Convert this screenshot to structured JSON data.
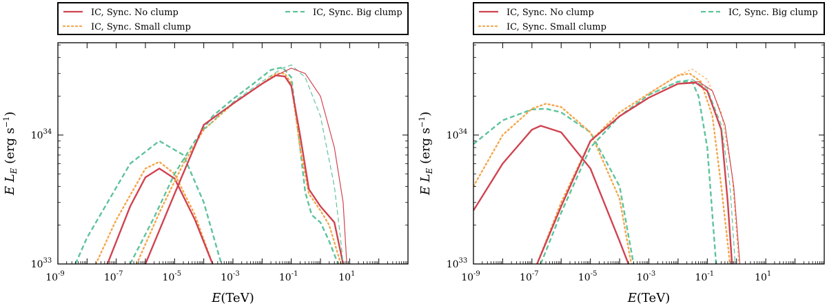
{
  "chart_data": [
    {
      "type": "line",
      "panel": "left",
      "xlabel": "E(TeV)",
      "ylabel": "E L_E (erg s^-1)",
      "xscale": "log",
      "yscale": "log",
      "xlim": [
        1e-09,
        1000
      ],
      "ylim": [
        1e+33,
        5.2e+34
      ],
      "x_tick_labels": [
        {
          "exp": "-9",
          "v": 1e-09
        },
        {
          "exp": "-7",
          "v": 1e-07
        },
        {
          "exp": "-5",
          "v": 1e-05
        },
        {
          "exp": "-3",
          "v": 0.001
        },
        {
          "exp": "-1",
          "v": 0.1
        },
        {
          "exp": "1",
          "v": 10
        }
      ],
      "y_tick_labels": [
        {
          "exp": "33",
          "v": 1e+33
        },
        {
          "exp": "34",
          "v": 1e+34
        }
      ],
      "legend": {
        "placement": "top",
        "entries": [
          {
            "label": "IC, Sync. No clump",
            "color": "#d0424f",
            "dash": "solid"
          },
          {
            "label": "IC, Sync. Small clump",
            "color": "#f5a64a",
            "dash": "dotted"
          },
          {
            "label": "IC, Sync. Big clump",
            "color": "#5cc39b",
            "dash": "dashed"
          }
        ]
      },
      "series": [
        {
          "color": "#5cc39b",
          "dash": "dashed",
          "width": 2.4,
          "points": [
            [
              4e-09,
              1e+33
            ],
            [
              1e-08,
              1.6e+33
            ],
            [
              3e-07,
              6e+33
            ],
            [
              3e-06,
              9e+33
            ],
            [
              2e-05,
              7e+33
            ],
            [
              0.0001,
              3e+33
            ],
            [
              0.0004,
              1e+33
            ]
          ]
        },
        {
          "color": "#f5a64a",
          "dash": "dotted",
          "width": 2.4,
          "points": [
            [
              2e-08,
              1e+33
            ],
            [
              1e-07,
              2.2e+33
            ],
            [
              1e-06,
              5.5e+33
            ],
            [
              3e-06,
              6.2e+33
            ],
            [
              1e-05,
              5e+33
            ],
            [
              5e-05,
              2.4e+33
            ],
            [
              0.0002,
              1e+33
            ]
          ]
        },
        {
          "color": "#d0424f",
          "dash": "solid",
          "width": 2.4,
          "points": [
            [
              5e-08,
              1e+33
            ],
            [
              3e-07,
              2.8e+33
            ],
            [
              1e-06,
              4.7e+33
            ],
            [
              3e-06,
              5.5e+33
            ],
            [
              1e-05,
              4.6e+33
            ],
            [
              5e-05,
              2.2e+33
            ],
            [
              0.0002,
              1e+33
            ]
          ]
        },
        {
          "color": "#5cc39b",
          "dash": "dashed",
          "width": 2.4,
          "points": [
            [
              3e-07,
              1e+33
            ],
            [
              2e-06,
              2.3e+33
            ],
            [
              1e-05,
              5e+33
            ],
            [
              5e-05,
              9e+33
            ],
            [
              0.0002,
              1.4e+34
            ],
            [
              0.001,
              1.9e+34
            ],
            [
              0.005,
              2.5e+34
            ],
            [
              0.02,
              3.2e+34
            ],
            [
              0.05,
              3.35e+34
            ],
            [
              0.1,
              2.8e+34
            ],
            [
              0.2,
              8e+33
            ],
            [
              0.3,
              3.6e+33
            ],
            [
              0.5,
              2.4e+33
            ],
            [
              1,
              2.1e+33
            ],
            [
              2,
              1.5e+33
            ],
            [
              4,
              1e+33
            ]
          ]
        },
        {
          "color": "#f5a64a",
          "dash": "dotted",
          "width": 2.4,
          "points": [
            [
              5e-07,
              1e+33
            ],
            [
              3e-06,
              2.5e+33
            ],
            [
              2e-05,
              6e+33
            ],
            [
              0.0001,
              1.1e+34
            ],
            [
              0.001,
              1.75e+34
            ],
            [
              0.01,
              2.5e+34
            ],
            [
              0.03,
              3e+34
            ],
            [
              0.06,
              3e+34
            ],
            [
              0.1,
              2.5e+34
            ],
            [
              0.2,
              8e+33
            ],
            [
              0.4,
              3.5e+33
            ],
            [
              1,
              2.6e+33
            ],
            [
              2,
              2e+33
            ],
            [
              5,
              1e+33
            ]
          ]
        },
        {
          "color": "#d0424f",
          "dash": "solid",
          "width": 2.4,
          "points": [
            [
              1e-06,
              1e+33
            ],
            [
              1e-05,
              3.5e+33
            ],
            [
              0.0001,
              1.2e+34
            ],
            [
              0.001,
              1.75e+34
            ],
            [
              0.01,
              2.5e+34
            ],
            [
              0.03,
              2.9e+34
            ],
            [
              0.06,
              2.85e+34
            ],
            [
              0.1,
              2.4e+34
            ],
            [
              0.2,
              1e+34
            ],
            [
              0.4,
              3.8e+33
            ],
            [
              1,
              2.8e+33
            ],
            [
              3,
              2.1e+33
            ],
            [
              6,
              1e+33
            ]
          ]
        },
        {
          "color": "#5cc39b",
          "dash": "dashed",
          "width": 1.2,
          "points": [
            [
              0.0001,
              1.1e+34
            ],
            [
              0.001,
              1.8e+34
            ],
            [
              0.01,
              2.6e+34
            ],
            [
              0.05,
              3.3e+34
            ],
            [
              0.1,
              3.5e+34
            ],
            [
              0.3,
              2.8e+34
            ],
            [
              1,
              1.4e+34
            ],
            [
              3,
              4e+33
            ],
            [
              5,
              1.5e+33
            ],
            [
              6,
              1e+33
            ]
          ]
        },
        {
          "color": "#d0424f",
          "dash": "solid",
          "width": 1.2,
          "points": [
            [
              0.0001,
              1.2e+34
            ],
            [
              0.001,
              1.75e+34
            ],
            [
              0.01,
              2.5e+34
            ],
            [
              0.03,
              2.9e+34
            ],
            [
              0.1,
              3.3e+34
            ],
            [
              0.3,
              3e+34
            ],
            [
              1,
              2e+34
            ],
            [
              3,
              8e+33
            ],
            [
              6,
              3e+33
            ],
            [
              8,
              1e+33
            ]
          ]
        }
      ]
    },
    {
      "type": "line",
      "panel": "right",
      "xlabel": "E(TeV)",
      "ylabel": "E L_E (erg s^-1)",
      "xscale": "log",
      "yscale": "log",
      "xlim": [
        1e-09,
        1000
      ],
      "ylim": [
        1e+33,
        5.2e+34
      ],
      "x_tick_labels": [
        {
          "exp": "-9",
          "v": 1e-09
        },
        {
          "exp": "-7",
          "v": 1e-07
        },
        {
          "exp": "-5",
          "v": 1e-05
        },
        {
          "exp": "-3",
          "v": 0.001
        },
        {
          "exp": "-1",
          "v": 0.1
        },
        {
          "exp": "1",
          "v": 10
        }
      ],
      "y_tick_labels": [
        {
          "exp": "33",
          "v": 1e+33
        },
        {
          "exp": "34",
          "v": 1e+34
        }
      ],
      "legend": {
        "placement": "top",
        "entries": [
          {
            "label": "IC, Sync. No clump",
            "color": "#d0424f",
            "dash": "solid"
          },
          {
            "label": "IC, Sync. Small clump",
            "color": "#f5a64a",
            "dash": "dotted"
          },
          {
            "label": "IC, Sync. Big clump",
            "color": "#5cc39b",
            "dash": "dashed"
          }
        ]
      },
      "series": [
        {
          "color": "#5cc39b",
          "dash": "dashed",
          "width": 2.4,
          "points": [
            [
              1e-09,
              8.5e+33
            ],
            [
              1e-08,
              1.3e+34
            ],
            [
              1e-07,
              1.58e+34
            ],
            [
              3e-07,
              1.6e+34
            ],
            [
              1e-06,
              1.5e+34
            ],
            [
              1e-05,
              1.05e+34
            ],
            [
              0.0001,
              4e+33
            ],
            [
              0.0003,
              1e+33
            ]
          ]
        },
        {
          "color": "#f5a64a",
          "dash": "dotted",
          "width": 2.4,
          "points": [
            [
              1e-09,
              4e+33
            ],
            [
              1e-08,
              1e+34
            ],
            [
              1e-07,
              1.6e+34
            ],
            [
              3e-07,
              1.75e+34
            ],
            [
              1e-06,
              1.65e+34
            ],
            [
              1e-05,
              1.05e+34
            ],
            [
              0.0001,
              3.2e+33
            ],
            [
              0.00025,
              1e+33
            ]
          ]
        },
        {
          "color": "#d0424f",
          "dash": "solid",
          "width": 2.4,
          "points": [
            [
              1e-09,
              2.6e+33
            ],
            [
              1e-08,
              6e+33
            ],
            [
              1e-07,
              1.1e+34
            ],
            [
              2e-07,
              1.18e+34
            ],
            [
              1e-06,
              1.05e+34
            ],
            [
              1e-05,
              5.5e+33
            ],
            [
              0.0001,
              1.5e+33
            ],
            [
              0.0002,
              1e+33
            ]
          ]
        },
        {
          "color": "#5cc39b",
          "dash": "dashed",
          "width": 2.4,
          "points": [
            [
              2e-07,
              1e+33
            ],
            [
              1e-06,
              2.5e+33
            ],
            [
              1e-05,
              8e+33
            ],
            [
              0.0001,
              1.4e+34
            ],
            [
              0.001,
              2.05e+34
            ],
            [
              0.01,
              2.6e+34
            ],
            [
              0.03,
              2.6e+34
            ],
            [
              0.05,
              2e+34
            ],
            [
              0.1,
              8e+33
            ],
            [
              0.2,
              1e+33
            ]
          ]
        },
        {
          "color": "#f5a64a",
          "dash": "dotted",
          "width": 2.4,
          "points": [
            [
              1.5e-07,
              1e+33
            ],
            [
              1e-06,
              3e+33
            ],
            [
              1e-05,
              9e+33
            ],
            [
              0.0001,
              1.5e+34
            ],
            [
              0.001,
              2.1e+34
            ],
            [
              0.01,
              2.9e+34
            ],
            [
              0.025,
              3e+34
            ],
            [
              0.06,
              2.6e+34
            ],
            [
              0.15,
              1.4e+34
            ],
            [
              0.3,
              4e+33
            ],
            [
              0.6,
              1e+33
            ]
          ]
        },
        {
          "color": "#d0424f",
          "dash": "solid",
          "width": 2.4,
          "points": [
            [
              1.5e-07,
              1e+33
            ],
            [
              1e-06,
              2.8e+33
            ],
            [
              1e-05,
              9e+33
            ],
            [
              0.0001,
              1.4e+34
            ],
            [
              0.001,
              1.95e+34
            ],
            [
              0.01,
              2.5e+34
            ],
            [
              0.04,
              2.55e+34
            ],
            [
              0.1,
              2.2e+34
            ],
            [
              0.3,
              1.1e+34
            ],
            [
              0.5,
              3e+33
            ],
            [
              0.7,
              1e+33
            ]
          ]
        },
        {
          "color": "#5cc39b",
          "dash": "dashed",
          "width": 1.2,
          "points": [
            [
              0.001,
              2.05e+34
            ],
            [
              0.01,
              2.6e+34
            ],
            [
              0.03,
              2.7e+34
            ],
            [
              0.1,
              2.3e+34
            ],
            [
              0.3,
              1.2e+34
            ],
            [
              0.6,
              4e+33
            ],
            [
              0.9,
              1e+33
            ]
          ]
        },
        {
          "color": "#f5a64a",
          "dash": "dotted",
          "width": 1.2,
          "points": [
            [
              0.001,
              2.1e+34
            ],
            [
              0.01,
              2.9e+34
            ],
            [
              0.03,
              3.25e+34
            ],
            [
              0.1,
              2.7e+34
            ],
            [
              0.3,
              1.5e+34
            ],
            [
              0.7,
              5e+33
            ],
            [
              1.2,
              1e+33
            ]
          ]
        },
        {
          "color": "#d0424f",
          "dash": "solid",
          "width": 1.2,
          "points": [
            [
              0.001,
              1.95e+34
            ],
            [
              0.01,
              2.5e+34
            ],
            [
              0.05,
              2.6e+34
            ],
            [
              0.15,
              2.2e+34
            ],
            [
              0.4,
              1.2e+34
            ],
            [
              0.8,
              4e+33
            ],
            [
              1.3,
              1e+33
            ]
          ]
        }
      ]
    }
  ]
}
